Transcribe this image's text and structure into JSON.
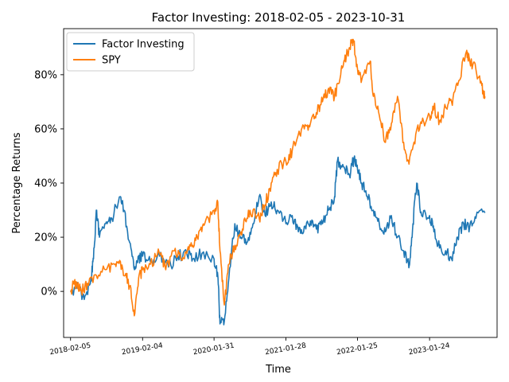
{
  "chart_data": {
    "type": "line",
    "title": "Factor Investing: 2018-02-05 - 2023-10-31",
    "xlabel": "Time",
    "ylabel": "Percentage Returns",
    "x_ticks": [
      "2018-02-05",
      "2019-02-04",
      "2020-01-31",
      "2021-01-28",
      "2022-01-25",
      "2023-01-24"
    ],
    "y_ticks": [
      "0%",
      "20%",
      "40%",
      "60%",
      "80%"
    ],
    "ylim": [
      -17,
      97
    ],
    "xlim": [
      "2018-01-01",
      "2023-12-31"
    ],
    "legend": {
      "position": "top-left"
    },
    "grid": false,
    "series": [
      {
        "name": "Factor Investing",
        "color": "#1f77b4",
        "points": [
          [
            "2018-02-05",
            0
          ],
          [
            "2018-03-15",
            2
          ],
          [
            "2018-04-15",
            -3
          ],
          [
            "2018-05-20",
            5
          ],
          [
            "2018-06-01",
            12
          ],
          [
            "2018-06-15",
            30
          ],
          [
            "2018-07-01",
            20
          ],
          [
            "2018-08-01",
            25
          ],
          [
            "2018-09-01",
            27
          ],
          [
            "2018-10-15",
            35
          ],
          [
            "2018-11-01",
            30
          ],
          [
            "2018-12-01",
            18
          ],
          [
            "2018-12-25",
            8
          ],
          [
            "2019-01-15",
            12
          ],
          [
            "2019-02-04",
            13
          ],
          [
            "2019-03-15",
            11
          ],
          [
            "2019-05-01",
            13
          ],
          [
            "2019-06-15",
            9
          ],
          [
            "2019-08-01",
            13
          ],
          [
            "2019-09-15",
            14
          ],
          [
            "2019-10-15",
            12
          ],
          [
            "2019-12-01",
            14
          ],
          [
            "2020-01-31",
            12
          ],
          [
            "2020-02-20",
            5
          ],
          [
            "2020-03-01",
            -12
          ],
          [
            "2020-03-23",
            -11
          ],
          [
            "2020-04-15",
            5
          ],
          [
            "2020-05-15",
            25
          ],
          [
            "2020-06-15",
            20
          ],
          [
            "2020-07-15",
            18
          ],
          [
            "2020-08-15",
            25
          ],
          [
            "2020-09-15",
            35
          ],
          [
            "2020-10-15",
            28
          ],
          [
            "2020-11-15",
            33
          ],
          [
            "2020-12-15",
            30
          ],
          [
            "2021-01-28",
            25
          ],
          [
            "2021-03-01",
            28
          ],
          [
            "2021-04-01",
            22
          ],
          [
            "2021-05-01",
            24
          ],
          [
            "2021-06-01",
            26
          ],
          [
            "2021-07-01",
            23
          ],
          [
            "2021-08-01",
            25
          ],
          [
            "2021-09-01",
            30
          ],
          [
            "2021-10-01",
            35
          ],
          [
            "2021-10-15",
            48
          ],
          [
            "2021-11-15",
            46
          ],
          [
            "2021-12-15",
            43
          ],
          [
            "2022-01-10",
            50
          ],
          [
            "2022-01-25",
            45
          ],
          [
            "2022-02-15",
            40
          ],
          [
            "2022-03-15",
            35
          ],
          [
            "2022-04-15",
            30
          ],
          [
            "2022-05-15",
            25
          ],
          [
            "2022-06-15",
            22
          ],
          [
            "2022-07-15",
            28
          ],
          [
            "2022-08-15",
            20
          ],
          [
            "2022-09-15",
            15
          ],
          [
            "2022-10-15",
            10
          ],
          [
            "2022-11-01",
            25
          ],
          [
            "2022-11-20",
            40
          ],
          [
            "2022-12-15",
            28
          ],
          [
            "2023-01-24",
            28
          ],
          [
            "2023-02-15",
            22
          ],
          [
            "2023-03-15",
            16
          ],
          [
            "2023-04-15",
            15
          ],
          [
            "2023-05-15",
            12
          ],
          [
            "2023-06-15",
            20
          ],
          [
            "2023-07-15",
            25
          ],
          [
            "2023-08-15",
            24
          ],
          [
            "2023-09-15",
            27
          ],
          [
            "2023-10-31",
            29
          ]
        ]
      },
      {
        "name": "SPY",
        "color": "#ff7f0e",
        "points": [
          [
            "2018-02-05",
            0
          ],
          [
            "2018-02-20",
            3
          ],
          [
            "2018-03-10",
            2
          ],
          [
            "2018-04-01",
            0
          ],
          [
            "2018-05-01",
            3
          ],
          [
            "2018-06-15",
            6
          ],
          [
            "2018-08-01",
            8
          ],
          [
            "2018-09-15",
            10
          ],
          [
            "2018-10-15",
            11
          ],
          [
            "2018-11-15",
            5
          ],
          [
            "2018-12-01",
            2
          ],
          [
            "2018-12-24",
            -9
          ],
          [
            "2019-01-15",
            5
          ],
          [
            "2019-02-04",
            8
          ],
          [
            "2019-03-15",
            10
          ],
          [
            "2019-04-30",
            14
          ],
          [
            "2019-06-01",
            8
          ],
          [
            "2019-07-15",
            15
          ],
          [
            "2019-08-15",
            12
          ],
          [
            "2019-09-15",
            14
          ],
          [
            "2019-10-15",
            17
          ],
          [
            "2019-11-15",
            22
          ],
          [
            "2019-12-15",
            25
          ],
          [
            "2020-01-31",
            30
          ],
          [
            "2020-02-19",
            33
          ],
          [
            "2020-03-01",
            15
          ],
          [
            "2020-03-23",
            -5
          ],
          [
            "2020-04-15",
            10
          ],
          [
            "2020-05-15",
            17
          ],
          [
            "2020-06-15",
            22
          ],
          [
            "2020-07-15",
            27
          ],
          [
            "2020-08-15",
            30
          ],
          [
            "2020-09-15",
            27
          ],
          [
            "2020-10-15",
            32
          ],
          [
            "2020-11-15",
            40
          ],
          [
            "2020-12-15",
            45
          ],
          [
            "2021-01-28",
            48
          ],
          [
            "2021-03-01",
            52
          ],
          [
            "2021-04-01",
            58
          ],
          [
            "2021-05-01",
            60
          ],
          [
            "2021-06-01",
            62
          ],
          [
            "2021-07-01",
            66
          ],
          [
            "2021-08-01",
            70
          ],
          [
            "2021-09-01",
            75
          ],
          [
            "2021-10-01",
            72
          ],
          [
            "2021-11-01",
            80
          ],
          [
            "2021-11-20",
            85
          ],
          [
            "2021-12-15",
            90
          ],
          [
            "2022-01-03",
            93
          ],
          [
            "2022-01-25",
            82
          ],
          [
            "2022-02-15",
            78
          ],
          [
            "2022-03-30",
            85
          ],
          [
            "2022-04-15",
            72
          ],
          [
            "2022-05-15",
            65
          ],
          [
            "2022-06-15",
            55
          ],
          [
            "2022-07-15",
            62
          ],
          [
            "2022-08-15",
            72
          ],
          [
            "2022-09-15",
            55
          ],
          [
            "2022-10-12",
            47
          ],
          [
            "2022-11-15",
            58
          ],
          [
            "2022-12-15",
            62
          ],
          [
            "2023-01-24",
            65
          ],
          [
            "2023-02-15",
            68
          ],
          [
            "2023-03-15",
            63
          ],
          [
            "2023-04-15",
            68
          ],
          [
            "2023-05-15",
            70
          ],
          [
            "2023-06-15",
            76
          ],
          [
            "2023-07-31",
            89
          ],
          [
            "2023-08-15",
            85
          ],
          [
            "2023-09-15",
            82
          ],
          [
            "2023-10-15",
            76
          ],
          [
            "2023-10-31",
            72
          ]
        ]
      }
    ]
  }
}
